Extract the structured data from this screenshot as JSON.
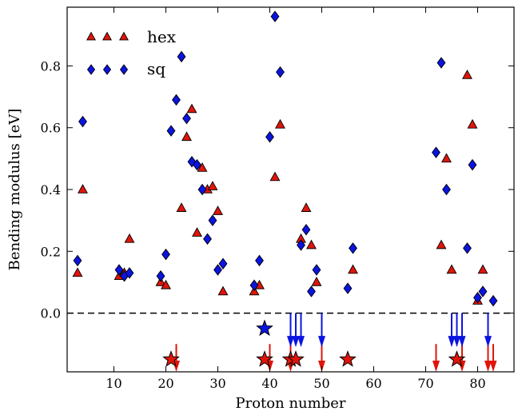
{
  "chart_data": {
    "type": "scatter",
    "title": "",
    "xlabel": "Proton number",
    "ylabel": "Bending modulus [eV]",
    "xlim": [
      1,
      87
    ],
    "ylim": [
      -0.19,
      0.99
    ],
    "xticks": [
      10,
      20,
      30,
      40,
      50,
      60,
      70,
      80
    ],
    "yticks": [
      0.0,
      0.2,
      0.4,
      0.6,
      0.8
    ],
    "xtick_labels": [
      "10",
      "20",
      "30",
      "40",
      "50",
      "60",
      "70",
      "80"
    ],
    "ytick_labels": [
      "0.0",
      "0.2",
      "0.4",
      "0.6",
      "0.8"
    ],
    "reference_line": {
      "y": 0.0,
      "style": "dashed",
      "color": "#000000"
    },
    "legend": {
      "placement": "top-left",
      "entries": [
        "hex",
        "sq"
      ]
    },
    "series": [
      {
        "name": "hex",
        "marker": "triangle",
        "color": "#e0150a",
        "points": [
          [
            3,
            0.13
          ],
          [
            4,
            0.4
          ],
          [
            11,
            0.12
          ],
          [
            12,
            0.13
          ],
          [
            13,
            0.24
          ],
          [
            19,
            0.1
          ],
          [
            20,
            0.09
          ],
          [
            23,
            0.34
          ],
          [
            24,
            0.57
          ],
          [
            25,
            0.66
          ],
          [
            26,
            0.26
          ],
          [
            27,
            0.47
          ],
          [
            28,
            0.4
          ],
          [
            29,
            0.41
          ],
          [
            30,
            0.33
          ],
          [
            31,
            0.07
          ],
          [
            37,
            0.07
          ],
          [
            38,
            0.09
          ],
          [
            41,
            0.44
          ],
          [
            42,
            0.61
          ],
          [
            46,
            0.24
          ],
          [
            47,
            0.34
          ],
          [
            48,
            0.22
          ],
          [
            49,
            0.1
          ],
          [
            56,
            0.14
          ],
          [
            73,
            0.22
          ],
          [
            74,
            0.5
          ],
          [
            75,
            0.14
          ],
          [
            78,
            0.77
          ],
          [
            79,
            0.61
          ],
          [
            80,
            0.04
          ],
          [
            81,
            0.14
          ]
        ]
      },
      {
        "name": "sq",
        "marker": "diamond",
        "color": "#0a14e0",
        "points": [
          [
            3,
            0.17
          ],
          [
            4,
            0.62
          ],
          [
            11,
            0.14
          ],
          [
            12,
            0.12
          ],
          [
            13,
            0.13
          ],
          [
            19,
            0.12
          ],
          [
            20,
            0.19
          ],
          [
            21,
            0.59
          ],
          [
            22,
            0.69
          ],
          [
            23,
            0.83
          ],
          [
            24,
            0.63
          ],
          [
            25,
            0.49
          ],
          [
            26,
            0.48
          ],
          [
            27,
            0.4
          ],
          [
            28,
            0.24
          ],
          [
            29,
            0.3
          ],
          [
            30,
            0.14
          ],
          [
            31,
            0.16
          ],
          [
            37,
            0.09
          ],
          [
            38,
            0.17
          ],
          [
            40,
            0.57
          ],
          [
            41,
            0.96
          ],
          [
            42,
            0.78
          ],
          [
            46,
            0.22
          ],
          [
            47,
            0.27
          ],
          [
            48,
            0.07
          ],
          [
            49,
            0.14
          ],
          [
            55,
            0.08
          ],
          [
            56,
            0.21
          ],
          [
            72,
            0.52
          ],
          [
            73,
            0.81
          ],
          [
            74,
            0.4
          ],
          [
            78,
            0.21
          ],
          [
            79,
            0.48
          ],
          [
            80,
            0.05
          ],
          [
            81,
            0.07
          ],
          [
            83,
            0.04
          ]
        ]
      }
    ],
    "stars": [
      {
        "x": 21,
        "y": -0.15,
        "color": "#e0150a"
      },
      {
        "x": 39,
        "y": -0.05,
        "color": "#0a14e0"
      },
      {
        "x": 39,
        "y": -0.15,
        "color": "#e0150a"
      },
      {
        "x": 44,
        "y": -0.15,
        "color": "#e0150a"
      },
      {
        "x": 45,
        "y": -0.15,
        "color": "#e0150a"
      },
      {
        "x": 55,
        "y": -0.15,
        "color": "#e0150a"
      },
      {
        "x": 76,
        "y": -0.15,
        "color": "#e0150a"
      }
    ],
    "arrows": [
      {
        "x": 22,
        "color": "#e0150a",
        "y_top": -0.1,
        "y_bottom": -0.19
      },
      {
        "x": 40,
        "color": "#e0150a",
        "y_top": -0.1,
        "y_bottom": -0.19
      },
      {
        "x": 44,
        "color": "#e0150a",
        "y_top": -0.1,
        "y_bottom": -0.19
      },
      {
        "x": 50,
        "color": "#e0150a",
        "y_top": -0.1,
        "y_bottom": -0.19
      },
      {
        "x": 72,
        "color": "#e0150a",
        "y_top": -0.1,
        "y_bottom": -0.19
      },
      {
        "x": 77,
        "color": "#e0150a",
        "y_top": -0.1,
        "y_bottom": -0.19
      },
      {
        "x": 82,
        "color": "#e0150a",
        "y_top": -0.1,
        "y_bottom": -0.19
      },
      {
        "x": 83,
        "color": "#e0150a",
        "y_top": -0.1,
        "y_bottom": -0.19
      },
      {
        "x": 44,
        "color": "#0a14e0",
        "y_top": 0.0,
        "y_bottom": -0.11
      },
      {
        "x": 45,
        "color": "#0a14e0",
        "y_top": 0.0,
        "y_bottom": -0.11
      },
      {
        "x": 46,
        "color": "#0a14e0",
        "y_top": 0.0,
        "y_bottom": -0.11
      },
      {
        "x": 50,
        "color": "#0a14e0",
        "y_top": 0.0,
        "y_bottom": -0.11
      },
      {
        "x": 75,
        "color": "#0a14e0",
        "y_top": 0.0,
        "y_bottom": -0.11
      },
      {
        "x": 76,
        "color": "#0a14e0",
        "y_top": 0.0,
        "y_bottom": -0.11
      },
      {
        "x": 77,
        "color": "#0a14e0",
        "y_top": 0.0,
        "y_bottom": -0.11
      },
      {
        "x": 82,
        "color": "#0a14e0",
        "y_top": 0.0,
        "y_bottom": -0.11
      }
    ]
  }
}
